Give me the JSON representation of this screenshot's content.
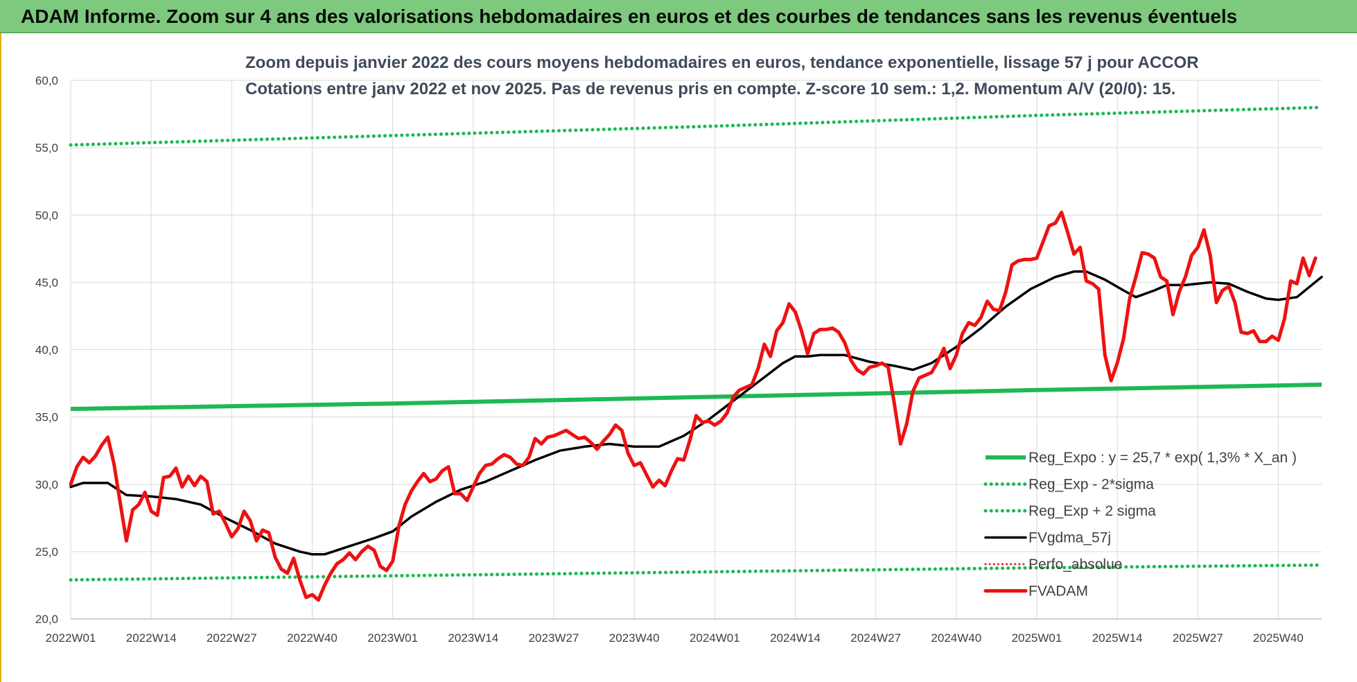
{
  "banner": {
    "title": "ADAM Informe. Zoom sur 4 ans des valorisations hebdomadaires en euros et des courbes de tendances sans les revenus éventuels"
  },
  "colors": {
    "banner_bg": "#7dc97d",
    "reg_expo": "#1db954",
    "sigma_bands": "#1db954",
    "fvgdma": "#000000",
    "perfo": "#e0202a",
    "fvadam": "#ee1111"
  },
  "chart_data": {
    "type": "line",
    "title_line1": "Zoom depuis janvier 2022 des cours moyens hebdomadaires en euros, tendance exponentielle, lissage 57 j pour ACCOR",
    "title_line2": "Cotations entre janv 2022 et nov 2025. Pas de revenus pris en compte. Z-score 10 sem.: 1,2. Momentum A/V (20/0): 15.",
    "ylim": [
      20,
      60
    ],
    "yticks": [
      "20,0",
      "25,0",
      "30,0",
      "35,0",
      "40,0",
      "45,0",
      "50,0",
      "55,0",
      "60,0"
    ],
    "grid": true,
    "legend_position": "bottom-right",
    "x_week_range": [
      1,
      203
    ],
    "xticks": [
      {
        "week": 1,
        "label": "2022W01"
      },
      {
        "week": 14,
        "label": "2022W14"
      },
      {
        "week": 27,
        "label": "2022W27"
      },
      {
        "week": 40,
        "label": "2022W40"
      },
      {
        "week": 53,
        "label": "2023W01"
      },
      {
        "week": 66,
        "label": "2023W14"
      },
      {
        "week": 79,
        "label": "2023W27"
      },
      {
        "week": 92,
        "label": "2023W40"
      },
      {
        "week": 105,
        "label": "2024W01"
      },
      {
        "week": 118,
        "label": "2024W14"
      },
      {
        "week": 131,
        "label": "2024W27"
      },
      {
        "week": 144,
        "label": "2024W40"
      },
      {
        "week": 157,
        "label": "2025W01"
      },
      {
        "week": 170,
        "label": "2025W14"
      },
      {
        "week": 183,
        "label": "2025W27"
      },
      {
        "week": 196,
        "label": "2025W40"
      }
    ],
    "series": [
      {
        "name": "Reg_Expo : y = 25,7 * exp( 1,3% *  X_an )",
        "style": "solid-thick",
        "points": [
          [
            1,
            35.6
          ],
          [
            53,
            36.0
          ],
          [
            105,
            36.5
          ],
          [
            157,
            37.0
          ],
          [
            203,
            37.4
          ]
        ]
      },
      {
        "name": "Reg_Exp - 2*sigma",
        "style": "dotted",
        "points": [
          [
            1,
            22.9
          ],
          [
            53,
            23.2
          ],
          [
            105,
            23.5
          ],
          [
            157,
            23.8
          ],
          [
            203,
            24.0
          ]
        ]
      },
      {
        "name": "Reg_Exp + 2 sigma",
        "style": "dotted",
        "points": [
          [
            1,
            55.2
          ],
          [
            53,
            55.9
          ],
          [
            105,
            56.6
          ],
          [
            157,
            57.4
          ],
          [
            203,
            58.0
          ]
        ]
      },
      {
        "name": "FVgdma_57j",
        "style": "solid-medium",
        "points": [
          [
            1,
            29.8
          ],
          [
            3,
            30.1
          ],
          [
            7,
            30.1
          ],
          [
            10,
            29.2
          ],
          [
            14,
            29.1
          ],
          [
            18,
            28.9
          ],
          [
            22,
            28.5
          ],
          [
            26,
            27.5
          ],
          [
            30,
            26.6
          ],
          [
            34,
            25.6
          ],
          [
            38,
            25.0
          ],
          [
            40,
            24.8
          ],
          [
            42,
            24.8
          ],
          [
            46,
            25.4
          ],
          [
            50,
            26.0
          ],
          [
            53,
            26.5
          ],
          [
            56,
            27.6
          ],
          [
            60,
            28.7
          ],
          [
            64,
            29.6
          ],
          [
            68,
            30.2
          ],
          [
            72,
            31.0
          ],
          [
            76,
            31.8
          ],
          [
            80,
            32.5
          ],
          [
            84,
            32.8
          ],
          [
            88,
            33.0
          ],
          [
            92,
            32.8
          ],
          [
            96,
            32.8
          ],
          [
            100,
            33.6
          ],
          [
            104,
            34.8
          ],
          [
            108,
            36.2
          ],
          [
            112,
            37.6
          ],
          [
            116,
            39.0
          ],
          [
            118,
            39.5
          ],
          [
            120,
            39.5
          ],
          [
            122,
            39.6
          ],
          [
            126,
            39.6
          ],
          [
            130,
            39.1
          ],
          [
            134,
            38.8
          ],
          [
            137,
            38.5
          ],
          [
            140,
            39.0
          ],
          [
            144,
            40.2
          ],
          [
            148,
            41.6
          ],
          [
            152,
            43.2
          ],
          [
            156,
            44.5
          ],
          [
            160,
            45.4
          ],
          [
            163,
            45.8
          ],
          [
            165,
            45.8
          ],
          [
            168,
            45.2
          ],
          [
            171,
            44.4
          ],
          [
            173,
            43.9
          ],
          [
            176,
            44.4
          ],
          [
            178,
            44.8
          ],
          [
            181,
            44.8
          ],
          [
            185,
            45.0
          ],
          [
            188,
            44.9
          ],
          [
            191,
            44.3
          ],
          [
            194,
            43.8
          ],
          [
            196,
            43.7
          ],
          [
            199,
            43.9
          ],
          [
            203,
            45.4
          ]
        ]
      },
      {
        "name": "Perfo_absolue",
        "style": "dotted-red",
        "points": []
      },
      {
        "name": "FVADAM",
        "style": "solid-thick",
        "points": [
          [
            1,
            30.0
          ],
          [
            2,
            31.3
          ],
          [
            3,
            32.0
          ],
          [
            4,
            31.6
          ],
          [
            5,
            32.1
          ],
          [
            6,
            32.9
          ],
          [
            7,
            33.5
          ],
          [
            8,
            31.5
          ],
          [
            9,
            28.6
          ],
          [
            10,
            25.8
          ],
          [
            11,
            28.1
          ],
          [
            12,
            28.5
          ],
          [
            13,
            29.4
          ],
          [
            14,
            28.0
          ],
          [
            15,
            27.7
          ],
          [
            16,
            30.5
          ],
          [
            17,
            30.6
          ],
          [
            18,
            31.2
          ],
          [
            19,
            29.8
          ],
          [
            20,
            30.6
          ],
          [
            21,
            29.9
          ],
          [
            22,
            30.6
          ],
          [
            23,
            30.2
          ],
          [
            24,
            27.8
          ],
          [
            25,
            28.0
          ],
          [
            26,
            27.1
          ],
          [
            27,
            26.1
          ],
          [
            28,
            26.7
          ],
          [
            29,
            28.0
          ],
          [
            30,
            27.3
          ],
          [
            31,
            25.8
          ],
          [
            32,
            26.6
          ],
          [
            33,
            26.4
          ],
          [
            34,
            24.6
          ],
          [
            35,
            23.7
          ],
          [
            36,
            23.4
          ],
          [
            37,
            24.5
          ],
          [
            38,
            22.9
          ],
          [
            39,
            21.6
          ],
          [
            40,
            21.8
          ],
          [
            41,
            21.4
          ],
          [
            42,
            22.5
          ],
          [
            43,
            23.4
          ],
          [
            44,
            24.1
          ],
          [
            45,
            24.4
          ],
          [
            46,
            24.9
          ],
          [
            47,
            24.4
          ],
          [
            48,
            25.0
          ],
          [
            49,
            25.4
          ],
          [
            50,
            25.1
          ],
          [
            51,
            23.9
          ],
          [
            52,
            23.6
          ],
          [
            53,
            24.3
          ],
          [
            54,
            26.9
          ],
          [
            55,
            28.5
          ],
          [
            56,
            29.5
          ],
          [
            57,
            30.2
          ],
          [
            58,
            30.8
          ],
          [
            59,
            30.2
          ],
          [
            60,
            30.4
          ],
          [
            61,
            31.0
          ],
          [
            62,
            31.3
          ],
          [
            63,
            29.3
          ],
          [
            64,
            29.3
          ],
          [
            65,
            28.8
          ],
          [
            66,
            29.8
          ],
          [
            67,
            30.8
          ],
          [
            68,
            31.4
          ],
          [
            69,
            31.5
          ],
          [
            70,
            31.9
          ],
          [
            71,
            32.2
          ],
          [
            72,
            32.0
          ],
          [
            73,
            31.5
          ],
          [
            74,
            31.4
          ],
          [
            75,
            32.0
          ],
          [
            76,
            33.4
          ],
          [
            77,
            33.0
          ],
          [
            78,
            33.5
          ],
          [
            79,
            33.6
          ],
          [
            80,
            33.8
          ],
          [
            81,
            34.0
          ],
          [
            82,
            33.7
          ],
          [
            83,
            33.4
          ],
          [
            84,
            33.5
          ],
          [
            85,
            33.1
          ],
          [
            86,
            32.6
          ],
          [
            87,
            33.2
          ],
          [
            88,
            33.7
          ],
          [
            89,
            34.4
          ],
          [
            90,
            34.0
          ],
          [
            91,
            32.3
          ],
          [
            92,
            31.4
          ],
          [
            93,
            31.6
          ],
          [
            94,
            30.7
          ],
          [
            95,
            29.8
          ],
          [
            96,
            30.3
          ],
          [
            97,
            29.9
          ],
          [
            98,
            31.0
          ],
          [
            99,
            31.9
          ],
          [
            100,
            31.8
          ],
          [
            101,
            33.3
          ],
          [
            102,
            35.1
          ],
          [
            103,
            34.6
          ],
          [
            104,
            34.7
          ],
          [
            105,
            34.4
          ],
          [
            106,
            34.7
          ],
          [
            107,
            35.3
          ],
          [
            108,
            36.5
          ],
          [
            109,
            37.0
          ],
          [
            110,
            37.2
          ],
          [
            111,
            37.4
          ],
          [
            112,
            38.6
          ],
          [
            113,
            40.4
          ],
          [
            114,
            39.5
          ],
          [
            115,
            41.4
          ],
          [
            116,
            42.0
          ],
          [
            117,
            43.4
          ],
          [
            118,
            42.8
          ],
          [
            119,
            41.4
          ],
          [
            120,
            39.7
          ],
          [
            121,
            41.2
          ],
          [
            122,
            41.5
          ],
          [
            123,
            41.5
          ],
          [
            124,
            41.6
          ],
          [
            125,
            41.3
          ],
          [
            126,
            40.5
          ],
          [
            127,
            39.2
          ],
          [
            128,
            38.5
          ],
          [
            129,
            38.2
          ],
          [
            130,
            38.7
          ],
          [
            131,
            38.8
          ],
          [
            132,
            39.0
          ],
          [
            133,
            38.7
          ],
          [
            134,
            36.0
          ],
          [
            135,
            33.0
          ],
          [
            136,
            34.5
          ],
          [
            137,
            36.9
          ],
          [
            138,
            37.9
          ],
          [
            139,
            38.1
          ],
          [
            140,
            38.3
          ],
          [
            141,
            39.1
          ],
          [
            142,
            40.1
          ],
          [
            143,
            38.6
          ],
          [
            144,
            39.6
          ],
          [
            145,
            41.2
          ],
          [
            146,
            42.0
          ],
          [
            147,
            41.8
          ],
          [
            148,
            42.4
          ],
          [
            149,
            43.6
          ],
          [
            150,
            43.0
          ],
          [
            151,
            42.9
          ],
          [
            152,
            44.3
          ],
          [
            153,
            46.3
          ],
          [
            154,
            46.6
          ],
          [
            155,
            46.7
          ],
          [
            156,
            46.7
          ],
          [
            157,
            46.8
          ],
          [
            158,
            48.0
          ],
          [
            159,
            49.2
          ],
          [
            160,
            49.4
          ],
          [
            161,
            50.2
          ],
          [
            162,
            48.7
          ],
          [
            163,
            47.1
          ],
          [
            164,
            47.6
          ],
          [
            165,
            45.1
          ],
          [
            166,
            44.9
          ],
          [
            167,
            44.5
          ],
          [
            168,
            39.6
          ],
          [
            169,
            37.7
          ],
          [
            170,
            39.0
          ],
          [
            171,
            40.8
          ],
          [
            172,
            43.8
          ],
          [
            173,
            45.4
          ],
          [
            174,
            47.2
          ],
          [
            175,
            47.1
          ],
          [
            176,
            46.8
          ],
          [
            177,
            45.4
          ],
          [
            178,
            45.1
          ],
          [
            179,
            42.6
          ],
          [
            180,
            44.3
          ],
          [
            181,
            45.4
          ],
          [
            182,
            47.0
          ],
          [
            183,
            47.6
          ],
          [
            184,
            48.9
          ],
          [
            185,
            47.0
          ],
          [
            186,
            43.5
          ],
          [
            187,
            44.4
          ],
          [
            188,
            44.7
          ],
          [
            189,
            43.5
          ],
          [
            190,
            41.3
          ],
          [
            191,
            41.2
          ],
          [
            192,
            41.4
          ],
          [
            193,
            40.6
          ],
          [
            194,
            40.6
          ],
          [
            195,
            41.0
          ],
          [
            196,
            40.7
          ],
          [
            197,
            42.3
          ],
          [
            198,
            45.1
          ],
          [
            199,
            44.9
          ],
          [
            200,
            46.8
          ],
          [
            201,
            45.5
          ],
          [
            202,
            46.8
          ]
        ]
      }
    ]
  }
}
